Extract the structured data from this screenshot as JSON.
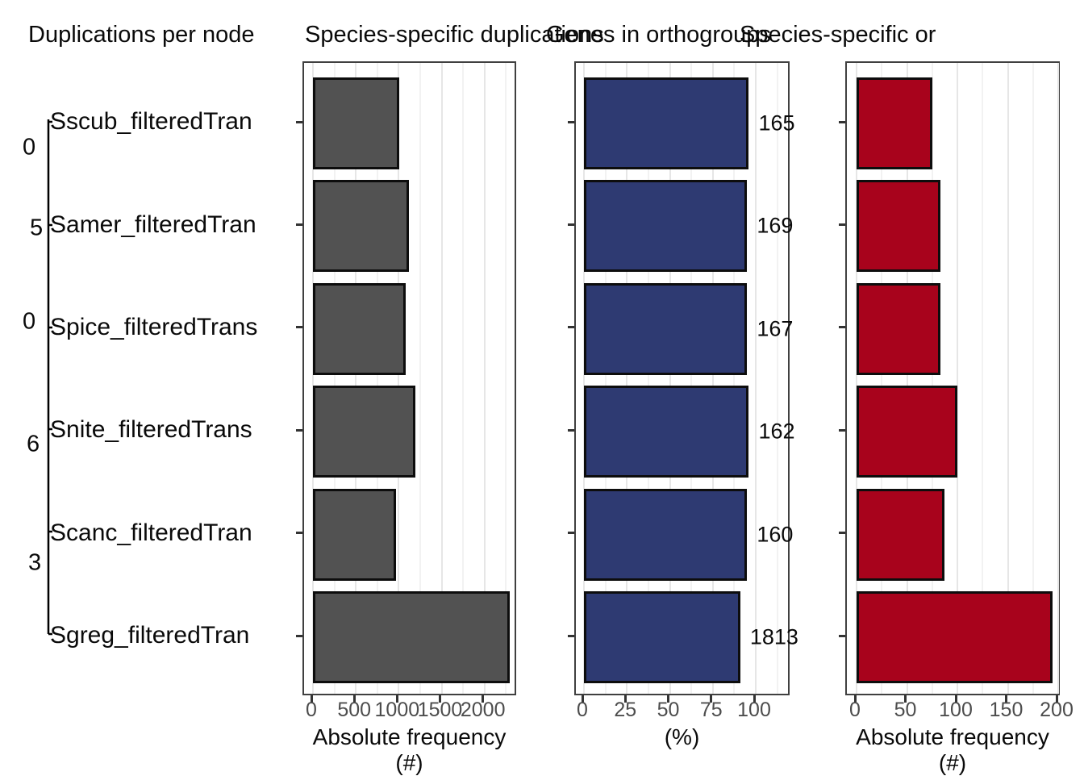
{
  "tree": {
    "title": "Duplications per node",
    "species": [
      "Sscub_filteredTran",
      "Samer_filteredTran",
      "Spice_filteredTrans",
      "Snite_filteredTrans",
      "Scanc_filteredTran",
      "Sgreg_filteredTran"
    ],
    "node_labels": [
      {
        "text": "0",
        "y": 183
      },
      {
        "text": "5",
        "y": 283
      },
      {
        "text": "0",
        "y": 399
      },
      {
        "text": "6",
        "y": 551
      },
      {
        "text": "3",
        "y": 698
      }
    ]
  },
  "chart_data": [
    {
      "type": "bar",
      "orientation": "horizontal",
      "title": "Species-specific duplications",
      "xlabel": "Absolute frequency (#)",
      "xticks": [
        0,
        500,
        1000,
        1500,
        2000
      ],
      "minor_ticks": [
        250,
        750,
        1250,
        1750,
        2250
      ],
      "xlim": [
        0,
        2390
      ],
      "grid": true,
      "legend": false,
      "bar_color": "#525252",
      "categories": [
        "Sscub_filteredTran",
        "Samer_filteredTran",
        "Spice_filteredTrans",
        "Snite_filteredTrans",
        "Scanc_filteredTran",
        "Sgreg_filteredTran"
      ],
      "values": [
        1010,
        1115,
        1080,
        1195,
        970,
        2290
      ]
    },
    {
      "type": "bar",
      "orientation": "horizontal",
      "title": "Genes in orthogroups",
      "xlabel": "(%)",
      "xticks": [
        0,
        25,
        50,
        75,
        100
      ],
      "minor_ticks": [
        12.5,
        37.5,
        62.5,
        87.5,
        112.5
      ],
      "xlim": [
        0,
        120
      ],
      "grid": true,
      "legend": false,
      "bar_color": "#2e3a72",
      "categories": [
        "Sscub_filteredTran",
        "Samer_filteredTran",
        "Spice_filteredTrans",
        "Snite_filteredTrans",
        "Scanc_filteredTran",
        "Sgreg_filteredTran"
      ],
      "values": [
        96,
        95,
        95,
        96,
        95,
        91
      ],
      "bar_labels": [
        "165",
        "169",
        "167",
        "162",
        "160",
        "1813"
      ]
    },
    {
      "type": "bar",
      "orientation": "horizontal",
      "title": "Species-specific or",
      "xlabel": "Absolute frequency (#)",
      "xticks": [
        0,
        50,
        100,
        150,
        200
      ],
      "minor_ticks": [
        25,
        75,
        125,
        175
      ],
      "xlim": [
        0,
        203
      ],
      "grid": true,
      "legend": false,
      "bar_color": "#a8031c",
      "categories": [
        "Sscub_filteredTran",
        "Samer_filteredTran",
        "Spice_filteredTrans",
        "Snite_filteredTrans",
        "Scanc_filteredTran",
        "Sgreg_filteredTran"
      ],
      "values": [
        75,
        83,
        83,
        100,
        87,
        194
      ]
    }
  ]
}
